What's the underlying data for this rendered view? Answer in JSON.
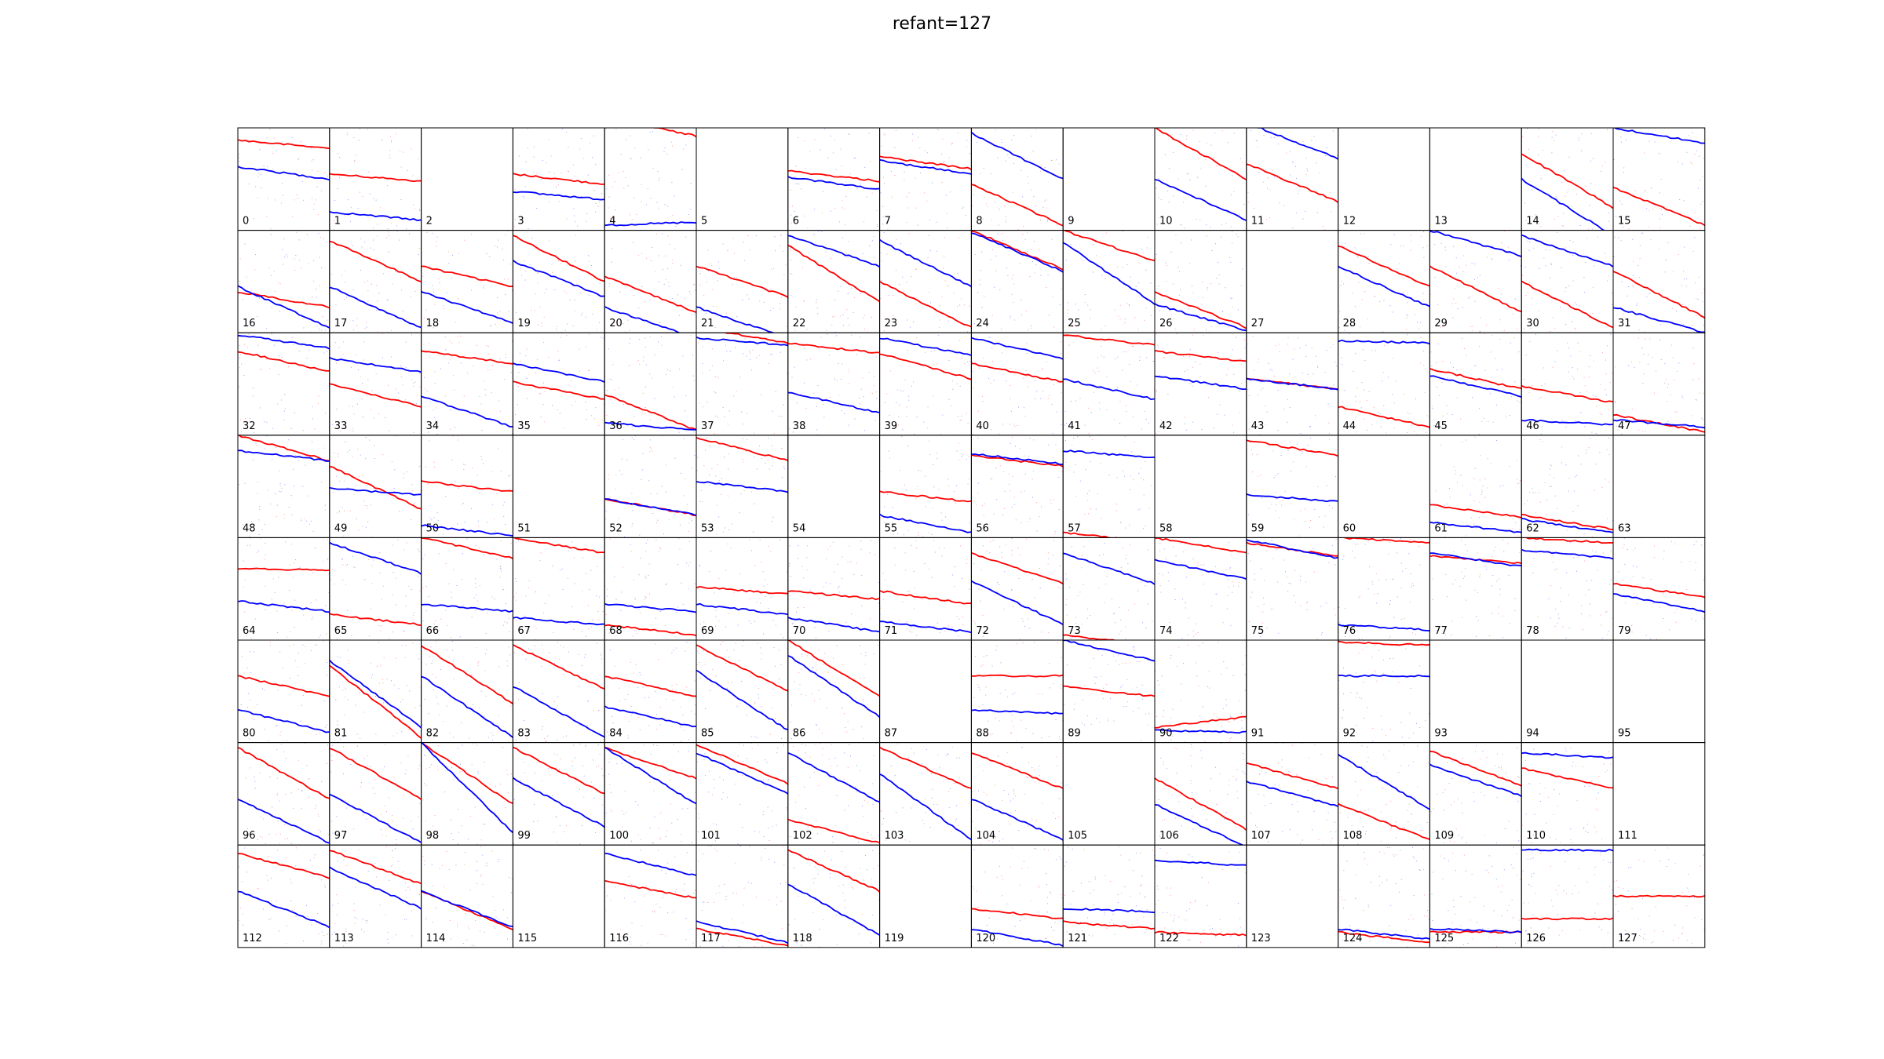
{
  "title": "refant=127",
  "colors": {
    "pol_a": "#ff0000",
    "pol_b": "#0000ff",
    "frame": "#000000",
    "scatter_a": "#ff9c9c",
    "scatter_b": "#9c9cff"
  },
  "chart_data": {
    "type": "scatter",
    "layout": "grid of per-antenna phase panels, 16 columns x 8 rows",
    "title": "refant=127",
    "xlabel": "",
    "ylabel": "",
    "grid": false,
    "legend": "none",
    "series_names": [],
    "panels": [
      {
        "label": "0",
        "red": [
          0.12,
          0.2
        ],
        "blue": [
          0.38,
          0.5
        ]
      },
      {
        "label": "1",
        "red": [
          0.45,
          0.52
        ],
        "blue": [
          0.82,
          0.9
        ]
      },
      {
        "label": "2",
        "red": null,
        "blue": null
      },
      {
        "label": "3",
        "red": [
          0.45,
          0.55
        ],
        "blue": [
          0.62,
          0.7
        ]
      },
      {
        "label": "4",
        "red": [
          -0.1,
          0.08
        ],
        "blue": [
          0.95,
          0.92
        ]
      },
      {
        "label": "5",
        "red": null,
        "blue": null
      },
      {
        "label": "6",
        "red": [
          0.42,
          0.52
        ],
        "blue": [
          0.48,
          0.6
        ]
      },
      {
        "label": "7",
        "red": [
          0.28,
          0.4
        ],
        "blue": [
          0.32,
          0.45
        ]
      },
      {
        "label": "8",
        "red": [
          0.55,
          0.95
        ],
        "blue": [
          0.05,
          0.5
        ]
      },
      {
        "label": "9",
        "red": null,
        "blue": null
      },
      {
        "label": "10",
        "red": [
          0.0,
          0.5
        ],
        "blue": [
          0.5,
          0.9
        ]
      },
      {
        "label": "11",
        "red": [
          0.35,
          0.72
        ],
        "blue": [
          -0.05,
          0.3
        ]
      },
      {
        "label": "12",
        "red": null,
        "blue": null
      },
      {
        "label": "13",
        "red": null,
        "blue": null
      },
      {
        "label": "14",
        "red": [
          0.25,
          0.78
        ],
        "blue": [
          0.5,
          1.05
        ]
      },
      {
        "label": "15",
        "red": [
          0.58,
          0.95
        ],
        "blue": [
          0.0,
          0.15
        ]
      },
      {
        "label": "16",
        "red": [
          0.6,
          0.75
        ],
        "blue": [
          0.55,
          0.95
        ]
      },
      {
        "label": "17",
        "red": [
          0.1,
          0.5
        ],
        "blue": [
          0.55,
          0.95
        ]
      },
      {
        "label": "18",
        "red": [
          0.35,
          0.55
        ],
        "blue": [
          0.6,
          0.9
        ]
      },
      {
        "label": "19",
        "red": [
          0.05,
          0.5
        ],
        "blue": [
          0.3,
          0.65
        ]
      },
      {
        "label": "20",
        "red": [
          0.45,
          0.8
        ],
        "blue": [
          0.75,
          1.05
        ]
      },
      {
        "label": "21",
        "red": [
          0.35,
          0.65
        ],
        "blue": [
          0.75,
          1.05
        ]
      },
      {
        "label": "22",
        "red": [
          0.15,
          0.7
        ],
        "blue": [
          0.05,
          0.35
        ]
      },
      {
        "label": "23",
        "red": [
          0.5,
          0.95
        ],
        "blue": [
          0.1,
          0.55
        ]
      },
      {
        "label": "24",
        "red": [
          0.0,
          0.38
        ],
        "blue": [
          0.02,
          0.4
        ]
      },
      {
        "label": "25",
        "red": [
          0.0,
          0.3
        ],
        "blue": [
          0.12,
          0.72
        ]
      },
      {
        "label": "26",
        "red": [
          0.6,
          0.95
        ],
        "blue": [
          0.72,
          0.98
        ]
      },
      {
        "label": "27",
        "red": null,
        "blue": null
      },
      {
        "label": "28",
        "red": [
          0.15,
          0.55
        ],
        "blue": [
          0.35,
          0.75
        ]
      },
      {
        "label": "29",
        "red": [
          0.35,
          0.8
        ],
        "blue": [
          0.0,
          0.25
        ]
      },
      {
        "label": "30",
        "red": [
          0.5,
          0.95
        ],
        "blue": [
          0.05,
          0.35
        ]
      },
      {
        "label": "31",
        "red": [
          0.4,
          0.85
        ],
        "blue": [
          0.75,
          1.0
        ]
      },
      {
        "label": "32",
        "red": [
          0.18,
          0.38
        ],
        "blue": [
          0.02,
          0.15
        ]
      },
      {
        "label": "33",
        "red": [
          0.5,
          0.72
        ],
        "blue": [
          0.25,
          0.38
        ]
      },
      {
        "label": "34",
        "red": [
          0.18,
          0.3
        ],
        "blue": [
          0.62,
          0.92
        ]
      },
      {
        "label": "35",
        "red": [
          0.48,
          0.65
        ],
        "blue": [
          0.3,
          0.48
        ]
      },
      {
        "label": "36",
        "red": [
          0.6,
          0.95
        ],
        "blue": [
          0.88,
          0.95
        ]
      },
      {
        "label": "37",
        "red": [
          -0.05,
          0.1
        ],
        "blue": [
          0.05,
          0.12
        ]
      },
      {
        "label": "38",
        "red": [
          0.1,
          0.2
        ],
        "blue": [
          0.58,
          0.78
        ]
      },
      {
        "label": "39",
        "red": [
          0.2,
          0.45
        ],
        "blue": [
          0.05,
          0.22
        ]
      },
      {
        "label": "40",
        "red": [
          0.3,
          0.48
        ],
        "blue": [
          0.05,
          0.25
        ]
      },
      {
        "label": "41",
        "red": [
          0.02,
          0.12
        ],
        "blue": [
          0.45,
          0.65
        ]
      },
      {
        "label": "42",
        "red": [
          0.18,
          0.28
        ],
        "blue": [
          0.42,
          0.55
        ]
      },
      {
        "label": "43",
        "red": [
          0.45,
          0.55
        ],
        "blue": [
          0.45,
          0.55
        ]
      },
      {
        "label": "44",
        "red": [
          0.72,
          0.92
        ],
        "blue": [
          0.08,
          0.1
        ]
      },
      {
        "label": "45",
        "red": [
          0.35,
          0.55
        ],
        "blue": [
          0.42,
          0.62
        ]
      },
      {
        "label": "46",
        "red": [
          0.52,
          0.68
        ],
        "blue": [
          0.85,
          0.9
        ]
      },
      {
        "label": "47",
        "red": [
          0.8,
          0.97
        ],
        "blue": [
          0.85,
          0.92
        ]
      },
      {
        "label": "48",
        "red": [
          0.0,
          0.25
        ],
        "blue": [
          0.15,
          0.25
        ]
      },
      {
        "label": "49",
        "red": [
          0.3,
          0.72
        ],
        "blue": [
          0.52,
          0.58
        ]
      },
      {
        "label": "50",
        "red": [
          0.45,
          0.55
        ],
        "blue": [
          0.88,
          0.98
        ]
      },
      {
        "label": "51",
        "red": null,
        "blue": null
      },
      {
        "label": "52",
        "red": [
          0.62,
          0.78
        ],
        "blue": [
          0.62,
          0.78
        ]
      },
      {
        "label": "53",
        "red": [
          0.02,
          0.25
        ],
        "blue": [
          0.45,
          0.55
        ]
      },
      {
        "label": "54",
        "red": null,
        "blue": null
      },
      {
        "label": "55",
        "red": [
          0.55,
          0.65
        ],
        "blue": [
          0.78,
          0.95
        ]
      },
      {
        "label": "56",
        "red": [
          0.2,
          0.3
        ],
        "blue": [
          0.18,
          0.28
        ]
      },
      {
        "label": "57",
        "red": [
          0.95,
          1.05
        ],
        "blue": [
          0.15,
          0.22
        ]
      },
      {
        "label": "58",
        "red": null,
        "blue": null
      },
      {
        "label": "59",
        "red": [
          0.05,
          0.2
        ],
        "blue": [
          0.58,
          0.65
        ]
      },
      {
        "label": "60",
        "red": null,
        "blue": null
      },
      {
        "label": "61",
        "red": [
          0.68,
          0.8
        ],
        "blue": [
          0.85,
          0.95
        ]
      },
      {
        "label": "62",
        "red": [
          0.78,
          0.92
        ],
        "blue": [
          0.82,
          0.95
        ]
      },
      {
        "label": "63",
        "red": null,
        "blue": null
      },
      {
        "label": "64",
        "red": [
          0.3,
          0.32
        ],
        "blue": [
          0.62,
          0.72
        ]
      },
      {
        "label": "65",
        "red": [
          0.75,
          0.85
        ],
        "blue": [
          0.05,
          0.35
        ]
      },
      {
        "label": "66",
        "red": [
          0.0,
          0.2
        ],
        "blue": [
          0.65,
          0.72
        ]
      },
      {
        "label": "67",
        "red": [
          0.0,
          0.15
        ],
        "blue": [
          0.78,
          0.85
        ]
      },
      {
        "label": "68",
        "red": [
          0.85,
          0.95
        ],
        "blue": [
          0.65,
          0.72
        ]
      },
      {
        "label": "69",
        "red": [
          0.48,
          0.55
        ],
        "blue": [
          0.65,
          0.75
        ]
      },
      {
        "label": "70",
        "red": [
          0.52,
          0.6
        ],
        "blue": [
          0.78,
          0.92
        ]
      },
      {
        "label": "71",
        "red": [
          0.52,
          0.65
        ],
        "blue": [
          0.82,
          0.92
        ]
      },
      {
        "label": "72",
        "red": [
          0.15,
          0.45
        ],
        "blue": [
          0.42,
          0.85
        ]
      },
      {
        "label": "73",
        "red": [
          0.95,
          1.05
        ],
        "blue": [
          0.15,
          0.45
        ]
      },
      {
        "label": "74",
        "red": [
          0.0,
          0.15
        ],
        "blue": [
          0.22,
          0.4
        ]
      },
      {
        "label": "75",
        "red": [
          0.05,
          0.18
        ],
        "blue": [
          0.02,
          0.2
        ]
      },
      {
        "label": "76",
        "red": [
          0.0,
          0.05
        ],
        "blue": [
          0.85,
          0.9
        ]
      },
      {
        "label": "77",
        "red": [
          0.18,
          0.25
        ],
        "blue": [
          0.15,
          0.28
        ]
      },
      {
        "label": "78",
        "red": [
          0.0,
          0.05
        ],
        "blue": [
          0.12,
          0.2
        ]
      },
      {
        "label": "79",
        "red": [
          0.45,
          0.58
        ],
        "blue": [
          0.55,
          0.72
        ]
      },
      {
        "label": "80",
        "red": [
          0.35,
          0.55
        ],
        "blue": [
          0.68,
          0.9
        ]
      },
      {
        "label": "81",
        "red": [
          0.25,
          0.95
        ],
        "blue": [
          0.2,
          0.85
        ]
      },
      {
        "label": "82",
        "red": [
          0.05,
          0.62
        ],
        "blue": [
          0.35,
          0.95
        ]
      },
      {
        "label": "83",
        "red": [
          0.05,
          0.48
        ],
        "blue": [
          0.45,
          0.95
        ]
      },
      {
        "label": "84",
        "red": [
          0.35,
          0.55
        ],
        "blue": [
          0.65,
          0.85
        ]
      },
      {
        "label": "85",
        "red": [
          0.05,
          0.5
        ],
        "blue": [
          0.3,
          0.88
        ]
      },
      {
        "label": "86",
        "red": [
          0.0,
          0.55
        ],
        "blue": [
          0.15,
          0.75
        ]
      },
      {
        "label": "87",
        "red": null,
        "blue": null
      },
      {
        "label": "88",
        "red": [
          0.35,
          0.35
        ],
        "blue": [
          0.68,
          0.72
        ]
      },
      {
        "label": "89",
        "red": [
          0.45,
          0.55
        ],
        "blue": [
          0.0,
          0.2
        ]
      },
      {
        "label": "90",
        "red": [
          0.85,
          0.75
        ],
        "blue": [
          0.88,
          0.9
        ]
      },
      {
        "label": "91",
        "red": null,
        "blue": null
      },
      {
        "label": "92",
        "red": [
          0.02,
          0.05
        ],
        "blue": [
          0.35,
          0.35
        ]
      },
      {
        "label": "93",
        "red": null,
        "blue": null
      },
      {
        "label": "94",
        "red": null,
        "blue": null
      },
      {
        "label": "95",
        "red": null,
        "blue": null
      },
      {
        "label": "96",
        "red": [
          0.05,
          0.55
        ],
        "blue": [
          0.55,
          0.98
        ]
      },
      {
        "label": "97",
        "red": [
          0.05,
          0.55
        ],
        "blue": [
          0.5,
          0.98
        ]
      },
      {
        "label": "98",
        "red": [
          0.0,
          0.6
        ],
        "blue": [
          0.0,
          0.88
        ]
      },
      {
        "label": "99",
        "red": [
          0.05,
          0.5
        ],
        "blue": [
          0.35,
          0.82
        ]
      },
      {
        "label": "100",
        "red": [
          0.05,
          0.35
        ],
        "blue": [
          0.05,
          0.6
        ]
      },
      {
        "label": "101",
        "red": [
          0.02,
          0.4
        ],
        "blue": [
          0.1,
          0.5
        ]
      },
      {
        "label": "102",
        "red": [
          0.75,
          0.98
        ],
        "blue": [
          0.1,
          0.58
        ]
      },
      {
        "label": "103",
        "red": [
          0.05,
          0.45
        ],
        "blue": [
          0.3,
          0.95
        ]
      },
      {
        "label": "104",
        "red": [
          0.1,
          0.45
        ],
        "blue": [
          0.55,
          0.95
        ]
      },
      {
        "label": "105",
        "red": null,
        "blue": null
      },
      {
        "label": "106",
        "red": [
          0.35,
          0.85
        ],
        "blue": [
          0.6,
          1.02
        ]
      },
      {
        "label": "107",
        "red": [
          0.2,
          0.45
        ],
        "blue": [
          0.38,
          0.62
        ]
      },
      {
        "label": "108",
        "red": [
          0.6,
          0.95
        ],
        "blue": [
          0.12,
          0.65
        ]
      },
      {
        "label": "109",
        "red": [
          0.08,
          0.42
        ],
        "blue": [
          0.22,
          0.52
        ]
      },
      {
        "label": "110",
        "red": [
          0.25,
          0.45
        ],
        "blue": [
          0.1,
          0.15
        ]
      },
      {
        "label": "111",
        "red": null,
        "blue": null
      },
      {
        "label": "112",
        "red": [
          0.08,
          0.32
        ],
        "blue": [
          0.45,
          0.8
        ]
      },
      {
        "label": "113",
        "red": [
          0.05,
          0.38
        ],
        "blue": [
          0.22,
          0.62
        ]
      },
      {
        "label": "114",
        "red": [
          0.45,
          0.82
        ],
        "blue": [
          0.45,
          0.8
        ]
      },
      {
        "label": "115",
        "red": null,
        "blue": null
      },
      {
        "label": "116",
        "red": [
          0.35,
          0.52
        ],
        "blue": [
          0.08,
          0.3
        ]
      },
      {
        "label": "117",
        "red": [
          0.82,
          0.98
        ],
        "blue": [
          0.75,
          0.95
        ]
      },
      {
        "label": "118",
        "red": [
          0.05,
          0.45
        ],
        "blue": [
          0.38,
          0.88
        ]
      },
      {
        "label": "119",
        "red": null,
        "blue": null
      },
      {
        "label": "120",
        "red": [
          0.62,
          0.72
        ],
        "blue": [
          0.82,
          0.98
        ]
      },
      {
        "label": "121",
        "red": [
          0.75,
          0.82
        ],
        "blue": [
          0.62,
          0.65
        ]
      },
      {
        "label": "122",
        "red": [
          0.85,
          0.88
        ],
        "blue": [
          0.15,
          0.2
        ]
      },
      {
        "label": "123",
        "red": null,
        "blue": null
      },
      {
        "label": "124",
        "red": [
          0.85,
          0.95
        ],
        "blue": [
          0.82,
          0.92
        ]
      },
      {
        "label": "125",
        "red": [
          0.85,
          0.85
        ],
        "blue": [
          0.82,
          0.85
        ]
      },
      {
        "label": "126",
        "red": [
          0.72,
          0.72
        ],
        "blue": [
          0.05,
          0.05
        ]
      },
      {
        "label": "127",
        "red": [
          0.5,
          0.5
        ],
        "blue": null
      }
    ]
  }
}
